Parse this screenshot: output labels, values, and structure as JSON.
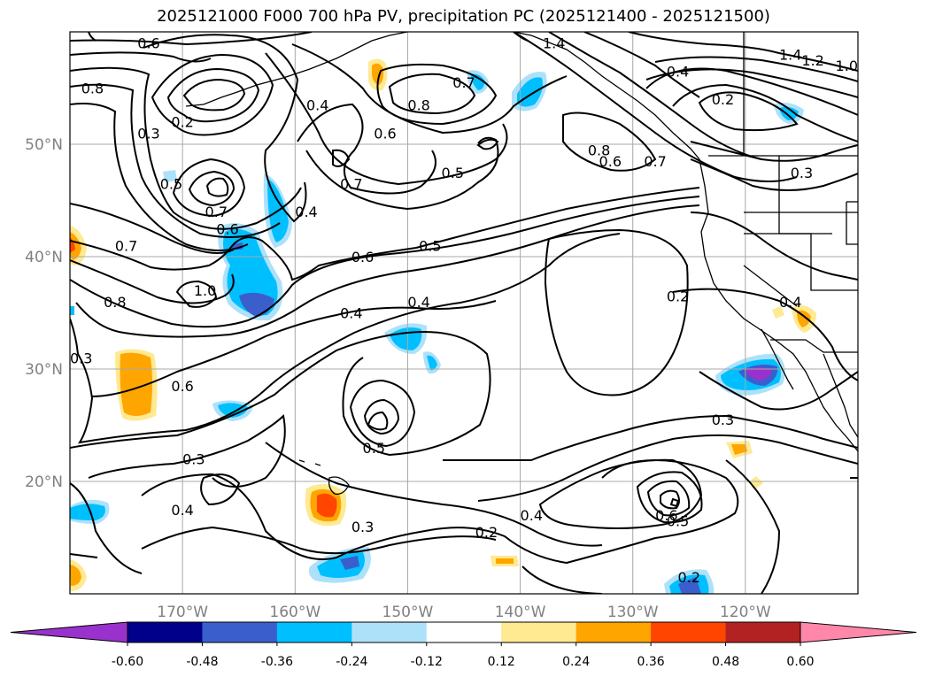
{
  "title": "2025121000 F000 700 hPa PV, precipitation PC (2025121400 - 2025121500)",
  "chart_data": {
    "type": "map-contour",
    "variable_contours": "700 hPa PV",
    "variable_fill": "precipitation PC",
    "lon_ticks": [
      "170°W",
      "160°W",
      "150°W",
      "140°W",
      "130°W",
      "120°W"
    ],
    "lat_ticks": [
      "50°N",
      "40°N",
      "30°N",
      "20°N"
    ],
    "lon_values": [
      -170,
      -160,
      -150,
      -140,
      -130,
      -120
    ],
    "lat_values": [
      50,
      40,
      30,
      20
    ],
    "lon_range": [
      -180,
      -110
    ],
    "lat_range": [
      10,
      60
    ],
    "contour_labels": [
      {
        "text": "0.6",
        "lon": -173,
        "lat": 59
      },
      {
        "text": "1.4",
        "lon": -137,
        "lat": 59
      },
      {
        "text": "1.4",
        "lon": -116,
        "lat": 58
      },
      {
        "text": "1.2",
        "lon": -114,
        "lat": 57.5
      },
      {
        "text": "1.0",
        "lon": -111,
        "lat": 57
      },
      {
        "text": "0.8",
        "lon": -178,
        "lat": 55
      },
      {
        "text": "0.4",
        "lon": -126,
        "lat": 56.5
      },
      {
        "text": "0.7",
        "lon": -145,
        "lat": 55.5
      },
      {
        "text": "0.8",
        "lon": -149,
        "lat": 53.5
      },
      {
        "text": "0.2",
        "lon": -170,
        "lat": 52
      },
      {
        "text": "0.4",
        "lon": -158,
        "lat": 53.5
      },
      {
        "text": "0.2",
        "lon": -122,
        "lat": 54
      },
      {
        "text": "0.3",
        "lon": -173,
        "lat": 51
      },
      {
        "text": "0.6",
        "lon": -152,
        "lat": 51
      },
      {
        "text": "0.8",
        "lon": -133,
        "lat": 49.5
      },
      {
        "text": "0.7",
        "lon": -128,
        "lat": 48.5
      },
      {
        "text": "0.6",
        "lon": -132,
        "lat": 48.5
      },
      {
        "text": "0.3",
        "lon": -115,
        "lat": 47.5
      },
      {
        "text": "0.5",
        "lon": -146,
        "lat": 47.5
      },
      {
        "text": "0.5",
        "lon": -171,
        "lat": 46.5
      },
      {
        "text": "0.7",
        "lon": -155,
        "lat": 46.5
      },
      {
        "text": "0.4",
        "lon": -159,
        "lat": 44
      },
      {
        "text": "0.7",
        "lon": -167,
        "lat": 44
      },
      {
        "text": "0.6",
        "lon": -166,
        "lat": 42.5
      },
      {
        "text": "0.7",
        "lon": -175,
        "lat": 41
      },
      {
        "text": "0.6",
        "lon": -154,
        "lat": 40
      },
      {
        "text": "0.5",
        "lon": -148,
        "lat": 41
      },
      {
        "text": "1.0",
        "lon": -168,
        "lat": 37
      },
      {
        "text": "0.8",
        "lon": -176,
        "lat": 36
      },
      {
        "text": "0.2",
        "lon": -126,
        "lat": 36.5
      },
      {
        "text": "0.4",
        "lon": -155,
        "lat": 35
      },
      {
        "text": "0.4",
        "lon": -149,
        "lat": 36
      },
      {
        "text": "0.4",
        "lon": -116,
        "lat": 36
      },
      {
        "text": "0.3",
        "lon": -179,
        "lat": 31
      },
      {
        "text": "0.6",
        "lon": -170,
        "lat": 28.5
      },
      {
        "text": "0.3",
        "lon": -122,
        "lat": 25.5
      },
      {
        "text": "0.5",
        "lon": -153,
        "lat": 23
      },
      {
        "text": "0.3",
        "lon": -169,
        "lat": 22
      },
      {
        "text": "0.4",
        "lon": -170,
        "lat": 17.5
      },
      {
        "text": "0.4",
        "lon": -139,
        "lat": 17
      },
      {
        "text": "0.3",
        "lon": -154,
        "lat": 16
      },
      {
        "text": "0.6",
        "lon": -127,
        "lat": 17
      },
      {
        "text": "0.5",
        "lon": -126,
        "lat": 16.5
      },
      {
        "text": "0.2",
        "lon": -143,
        "lat": 15.5
      },
      {
        "text": "0.2",
        "lon": -125,
        "lat": 11.5
      }
    ],
    "colorbar": {
      "ticks": [
        "-0.60",
        "-0.48",
        "-0.36",
        "-0.24",
        "-0.12",
        "0.12",
        "0.24",
        "0.36",
        "0.48",
        "0.60"
      ],
      "bounds": [
        -0.6,
        -0.48,
        -0.36,
        -0.24,
        -0.12,
        0.12,
        0.24,
        0.36,
        0.48,
        0.6
      ],
      "colors": [
        "#9932CC",
        "#00008B",
        "#3A5FCD",
        "#00BFFF",
        "#ADE1FA",
        "#FFFFFF",
        "#FFE991",
        "#FFA500",
        "#FF4500",
        "#B22222",
        "#FF88AA"
      ],
      "extend": "both"
    }
  }
}
